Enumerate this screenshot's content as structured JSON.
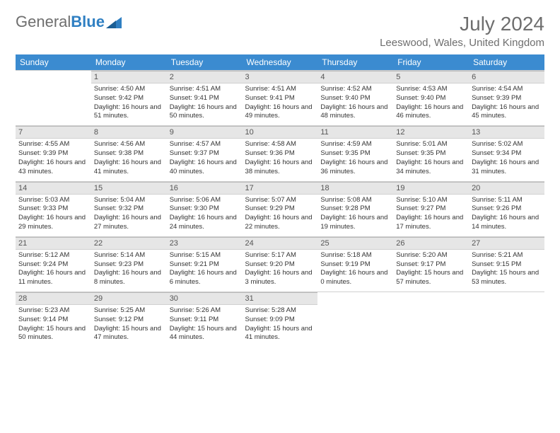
{
  "logo": {
    "text_general": "General",
    "text_blue": "Blue"
  },
  "title": "July 2024",
  "location": "Leeswood, Wales, United Kingdom",
  "colors": {
    "header_bg": "#3b8bd0",
    "header_text": "#ffffff",
    "daynum_bg": "#e6e6e6",
    "border": "#d0d0d0",
    "text": "#333333",
    "title_text": "#6e6e6e"
  },
  "fonts": {
    "title_size": 28,
    "location_size": 15,
    "th_size": 12,
    "daynum_size": 11,
    "info_size": 9.5
  },
  "day_headers": [
    "Sunday",
    "Monday",
    "Tuesday",
    "Wednesday",
    "Thursday",
    "Friday",
    "Saturday"
  ],
  "weeks": [
    [
      null,
      {
        "d": "1",
        "sunrise": "4:50 AM",
        "sunset": "9:42 PM",
        "daylight": "16 hours and 51 minutes."
      },
      {
        "d": "2",
        "sunrise": "4:51 AM",
        "sunset": "9:41 PM",
        "daylight": "16 hours and 50 minutes."
      },
      {
        "d": "3",
        "sunrise": "4:51 AM",
        "sunset": "9:41 PM",
        "daylight": "16 hours and 49 minutes."
      },
      {
        "d": "4",
        "sunrise": "4:52 AM",
        "sunset": "9:40 PM",
        "daylight": "16 hours and 48 minutes."
      },
      {
        "d": "5",
        "sunrise": "4:53 AM",
        "sunset": "9:40 PM",
        "daylight": "16 hours and 46 minutes."
      },
      {
        "d": "6",
        "sunrise": "4:54 AM",
        "sunset": "9:39 PM",
        "daylight": "16 hours and 45 minutes."
      }
    ],
    [
      {
        "d": "7",
        "sunrise": "4:55 AM",
        "sunset": "9:39 PM",
        "daylight": "16 hours and 43 minutes."
      },
      {
        "d": "8",
        "sunrise": "4:56 AM",
        "sunset": "9:38 PM",
        "daylight": "16 hours and 41 minutes."
      },
      {
        "d": "9",
        "sunrise": "4:57 AM",
        "sunset": "9:37 PM",
        "daylight": "16 hours and 40 minutes."
      },
      {
        "d": "10",
        "sunrise": "4:58 AM",
        "sunset": "9:36 PM",
        "daylight": "16 hours and 38 minutes."
      },
      {
        "d": "11",
        "sunrise": "4:59 AM",
        "sunset": "9:35 PM",
        "daylight": "16 hours and 36 minutes."
      },
      {
        "d": "12",
        "sunrise": "5:01 AM",
        "sunset": "9:35 PM",
        "daylight": "16 hours and 34 minutes."
      },
      {
        "d": "13",
        "sunrise": "5:02 AM",
        "sunset": "9:34 PM",
        "daylight": "16 hours and 31 minutes."
      }
    ],
    [
      {
        "d": "14",
        "sunrise": "5:03 AM",
        "sunset": "9:33 PM",
        "daylight": "16 hours and 29 minutes."
      },
      {
        "d": "15",
        "sunrise": "5:04 AM",
        "sunset": "9:32 PM",
        "daylight": "16 hours and 27 minutes."
      },
      {
        "d": "16",
        "sunrise": "5:06 AM",
        "sunset": "9:30 PM",
        "daylight": "16 hours and 24 minutes."
      },
      {
        "d": "17",
        "sunrise": "5:07 AM",
        "sunset": "9:29 PM",
        "daylight": "16 hours and 22 minutes."
      },
      {
        "d": "18",
        "sunrise": "5:08 AM",
        "sunset": "9:28 PM",
        "daylight": "16 hours and 19 minutes."
      },
      {
        "d": "19",
        "sunrise": "5:10 AM",
        "sunset": "9:27 PM",
        "daylight": "16 hours and 17 minutes."
      },
      {
        "d": "20",
        "sunrise": "5:11 AM",
        "sunset": "9:26 PM",
        "daylight": "16 hours and 14 minutes."
      }
    ],
    [
      {
        "d": "21",
        "sunrise": "5:12 AM",
        "sunset": "9:24 PM",
        "daylight": "16 hours and 11 minutes."
      },
      {
        "d": "22",
        "sunrise": "5:14 AM",
        "sunset": "9:23 PM",
        "daylight": "16 hours and 8 minutes."
      },
      {
        "d": "23",
        "sunrise": "5:15 AM",
        "sunset": "9:21 PM",
        "daylight": "16 hours and 6 minutes."
      },
      {
        "d": "24",
        "sunrise": "5:17 AM",
        "sunset": "9:20 PM",
        "daylight": "16 hours and 3 minutes."
      },
      {
        "d": "25",
        "sunrise": "5:18 AM",
        "sunset": "9:19 PM",
        "daylight": "16 hours and 0 minutes."
      },
      {
        "d": "26",
        "sunrise": "5:20 AM",
        "sunset": "9:17 PM",
        "daylight": "15 hours and 57 minutes."
      },
      {
        "d": "27",
        "sunrise": "5:21 AM",
        "sunset": "9:15 PM",
        "daylight": "15 hours and 53 minutes."
      }
    ],
    [
      {
        "d": "28",
        "sunrise": "5:23 AM",
        "sunset": "9:14 PM",
        "daylight": "15 hours and 50 minutes."
      },
      {
        "d": "29",
        "sunrise": "5:25 AM",
        "sunset": "9:12 PM",
        "daylight": "15 hours and 47 minutes."
      },
      {
        "d": "30",
        "sunrise": "5:26 AM",
        "sunset": "9:11 PM",
        "daylight": "15 hours and 44 minutes."
      },
      {
        "d": "31",
        "sunrise": "5:28 AM",
        "sunset": "9:09 PM",
        "daylight": "15 hours and 41 minutes."
      },
      null,
      null,
      null
    ]
  ],
  "labels": {
    "sunrise": "Sunrise:",
    "sunset": "Sunset:",
    "daylight": "Daylight:"
  }
}
